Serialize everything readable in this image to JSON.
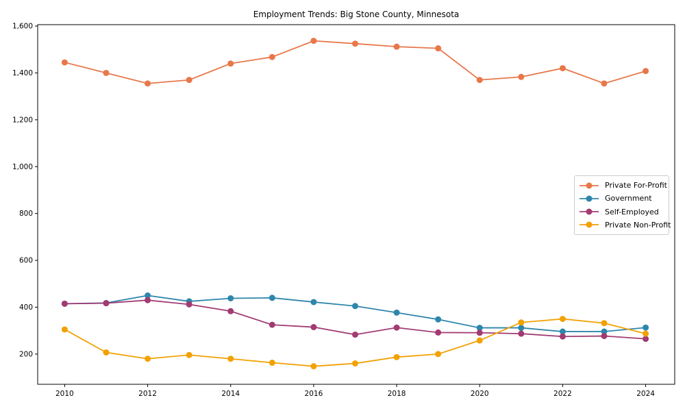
{
  "figure": {
    "background": "#ffffff",
    "axes_edge_color": "#000000",
    "tick_label_color": "#000000"
  },
  "chart_data": {
    "type": "line",
    "title": "Employment Trends: Big Stone County, Minnesota",
    "xlabel": "",
    "ylabel": "",
    "x": [
      2010,
      2011,
      2012,
      2013,
      2014,
      2015,
      2016,
      2017,
      2018,
      2019,
      2020,
      2021,
      2022,
      2023,
      2024
    ],
    "xticks": [
      2010,
      2012,
      2014,
      2016,
      2018,
      2020,
      2022,
      2024
    ],
    "yticks": [
      200,
      400,
      600,
      800,
      1000,
      1200,
      1400,
      1600
    ],
    "ytick_labels": [
      "200",
      "400",
      "600",
      "800",
      "1,000",
      "1,200",
      "1,400",
      "1,600"
    ],
    "ylim": [
      71,
      1606
    ],
    "xlim": [
      2009.35,
      2024.7
    ],
    "grid": false,
    "legend_position": "center-right",
    "marker": "circle",
    "series": [
      {
        "name": "Private For-Profit",
        "color": "#E8774A",
        "values": [
          1445,
          1400,
          1355,
          1370,
          1440,
          1468,
          1537,
          1525,
          1512,
          1505,
          1370,
          1383,
          1420,
          1355,
          1408
        ]
      },
      {
        "name": "Government",
        "color": "#2E86AB",
        "values": [
          415,
          418,
          450,
          425,
          438,
          440,
          422,
          405,
          377,
          348,
          312,
          312,
          296,
          296,
          313
        ]
      },
      {
        "name": "Self-Employed",
        "color": "#A23B72",
        "values": [
          415,
          417,
          430,
          412,
          383,
          325,
          315,
          283,
          313,
          292,
          291,
          287,
          275,
          277,
          265
        ]
      },
      {
        "name": "Private Non-Profit",
        "color": "#F2A104",
        "values": [
          305,
          207,
          180,
          196,
          180,
          163,
          148,
          160,
          187,
          200,
          258,
          335,
          350,
          332,
          287
        ]
      }
    ]
  }
}
